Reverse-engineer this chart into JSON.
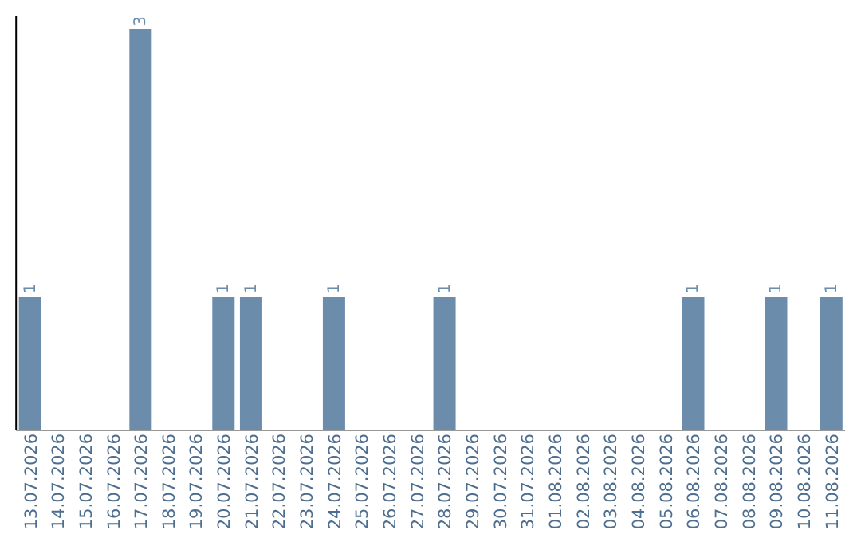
{
  "chart_data": {
    "type": "bar",
    "categories": [
      "13.07.2026",
      "14.07.2026",
      "15.07.2026",
      "16.07.2026",
      "17.07.2026",
      "18.07.2026",
      "19.07.2026",
      "20.07.2026",
      "21.07.2026",
      "22.07.2026",
      "23.07.2026",
      "24.07.2026",
      "25.07.2026",
      "26.07.2026",
      "27.07.2026",
      "28.07.2026",
      "29.07.2026",
      "30.07.2026",
      "31.07.2026",
      "01.08.2026",
      "02.08.2026",
      "03.08.2026",
      "04.08.2026",
      "05.08.2026",
      "06.08.2026",
      "07.08.2026",
      "08.08.2026",
      "09.08.2026",
      "10.08.2026",
      "11.08.2026"
    ],
    "values": [
      1,
      0,
      0,
      0,
      3,
      0,
      0,
      1,
      1,
      0,
      0,
      1,
      0,
      0,
      0,
      1,
      0,
      0,
      0,
      0,
      0,
      0,
      0,
      0,
      1,
      0,
      0,
      1,
      0,
      1
    ],
    "value_labels": [
      "1",
      null,
      null,
      null,
      "3",
      null,
      null,
      "1",
      "1",
      null,
      null,
      "1",
      null,
      null,
      null,
      "1",
      null,
      null,
      null,
      null,
      null,
      null,
      null,
      null,
      "1",
      null,
      null,
      "1",
      null,
      "1"
    ],
    "color": "#6b8cab",
    "ylim": [
      0,
      3.1
    ],
    "tick_labels": "x",
    "grid": false,
    "legend": false
  }
}
